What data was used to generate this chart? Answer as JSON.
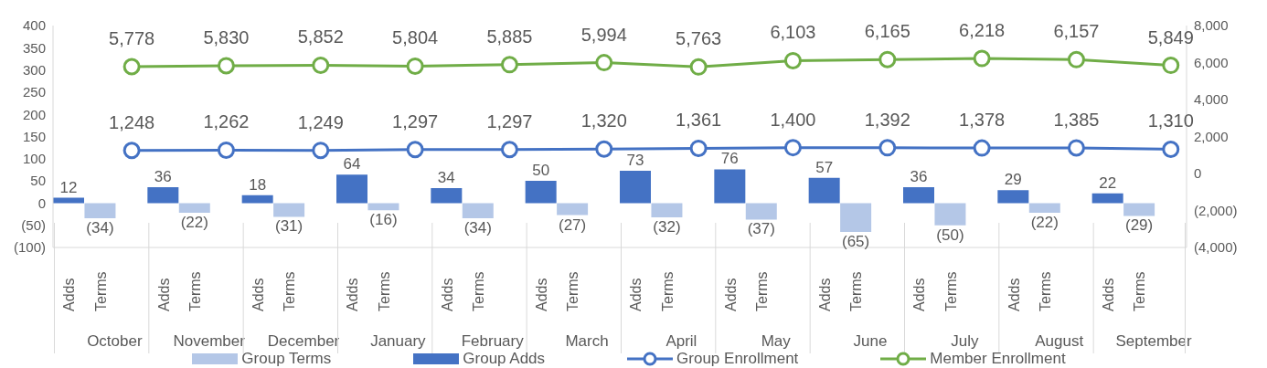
{
  "chart_data": {
    "type": "bar",
    "categories": [
      "Adds",
      "Terms",
      null,
      "Adds",
      "Terms",
      null,
      "Adds",
      "Terms",
      null,
      "Adds",
      "Terms",
      null,
      "Adds",
      "Terms",
      null,
      "Adds",
      "Terms",
      null,
      "Adds",
      "Terms",
      null,
      "Adds",
      "Terms",
      null,
      "Adds",
      "Terms",
      null,
      "Adds",
      "Terms",
      null,
      "Adds",
      "Terms",
      null,
      "Adds",
      "Terms",
      null
    ],
    "annotations": [
      "October",
      "November",
      "December",
      "January",
      "February",
      "March",
      "April",
      "May",
      "June",
      "July",
      "August",
      "September"
    ],
    "series": [
      {
        "name": "Group Terms",
        "color": "#b4c7e7",
        "values": [
          null,
          -34,
          null,
          null,
          -22,
          null,
          null,
          -31,
          null,
          null,
          -16,
          null,
          null,
          -34,
          null,
          null,
          -27,
          null,
          null,
          -32,
          null,
          null,
          -37,
          null,
          null,
          -65,
          null,
          null,
          -50,
          null,
          null,
          -22,
          null,
          null,
          -29,
          null
        ],
        "value_labels": [
          null,
          "(34)",
          null,
          null,
          "(22)",
          null,
          null,
          "(31)",
          null,
          null,
          "(16)",
          null,
          null,
          "(34)",
          null,
          null,
          "(27)",
          null,
          null,
          "(32)",
          null,
          null,
          "(37)",
          null,
          null,
          "(65)",
          null,
          null,
          "(50)",
          null,
          null,
          "(22)",
          null,
          null,
          "(29)",
          null
        ]
      },
      {
        "name": "Group Adds",
        "color": "#4472c4",
        "values": [
          12,
          null,
          null,
          36,
          null,
          null,
          18,
          null,
          null,
          64,
          null,
          null,
          34,
          null,
          null,
          50,
          null,
          null,
          73,
          null,
          null,
          76,
          null,
          null,
          57,
          null,
          null,
          36,
          null,
          null,
          29,
          null,
          null,
          22,
          null,
          null
        ],
        "value_labels": [
          "12",
          null,
          null,
          "36",
          null,
          null,
          "18",
          null,
          null,
          "64",
          null,
          null,
          "34",
          null,
          null,
          "50",
          null,
          null,
          "73",
          null,
          null,
          "76",
          null,
          null,
          "57",
          null,
          null,
          "36",
          null,
          null,
          "29",
          null,
          null,
          "22",
          null,
          null
        ]
      },
      {
        "name": "Group Enrollment",
        "type": "line",
        "axis": "y2",
        "color": "#4472c4",
        "values": [
          null,
          null,
          1248,
          null,
          null,
          1262,
          null,
          null,
          1249,
          null,
          null,
          1297,
          null,
          null,
          1297,
          null,
          null,
          1320,
          null,
          null,
          1361,
          null,
          null,
          1400,
          null,
          null,
          1392,
          null,
          null,
          1378,
          null,
          null,
          1385,
          null,
          null,
          1310
        ],
        "value_labels": [
          null,
          null,
          "1,248",
          null,
          null,
          "1,262",
          null,
          null,
          "1,249",
          null,
          null,
          "1,297",
          null,
          null,
          "1,297",
          null,
          null,
          "1,320",
          null,
          null,
          "1,361",
          null,
          null,
          "1,400",
          null,
          null,
          "1,392",
          null,
          null,
          "1,378",
          null,
          null,
          "1,385",
          null,
          null,
          "1,310"
        ]
      },
      {
        "name": "Member Enrollment",
        "type": "line",
        "axis": "y2",
        "color": "#70ad47",
        "values": [
          null,
          null,
          5778,
          null,
          null,
          5830,
          null,
          null,
          5852,
          null,
          null,
          5804,
          null,
          null,
          5885,
          null,
          null,
          5994,
          null,
          null,
          5763,
          null,
          null,
          6103,
          null,
          null,
          6165,
          null,
          null,
          6218,
          null,
          null,
          6157,
          null,
          null,
          5849
        ],
        "value_labels": [
          null,
          null,
          "5,778",
          null,
          null,
          "5,830",
          null,
          null,
          "5,852",
          null,
          null,
          "5,804",
          null,
          null,
          "5,885",
          null,
          null,
          "5,994",
          null,
          null,
          "5,763",
          null,
          null,
          "6,103",
          null,
          null,
          "6,165",
          null,
          null,
          "6,218",
          null,
          null,
          "6,157",
          null,
          null,
          "5,849"
        ]
      }
    ],
    "ylim": [
      -100,
      400
    ],
    "yticks": [
      {
        "value": -100,
        "label": "(100)"
      },
      {
        "value": -50,
        "label": "(50)"
      },
      0,
      50,
      100,
      150,
      200,
      250,
      300,
      350,
      400
    ],
    "y2lim": [
      -4000,
      8000
    ],
    "y2ticks": [
      {
        "value": -4000,
        "label": "(4,000)"
      },
      {
        "value": -2000,
        "label": "(2,000)"
      },
      0,
      {
        "value": 2000,
        "label": "2,000"
      },
      {
        "value": 4000,
        "label": "4,000"
      },
      {
        "value": 6000,
        "label": "6,000"
      },
      {
        "value": 8000,
        "label": "8,000"
      }
    ],
    "legend": "bottom",
    "marker": "circle",
    "line_style": "solid"
  }
}
